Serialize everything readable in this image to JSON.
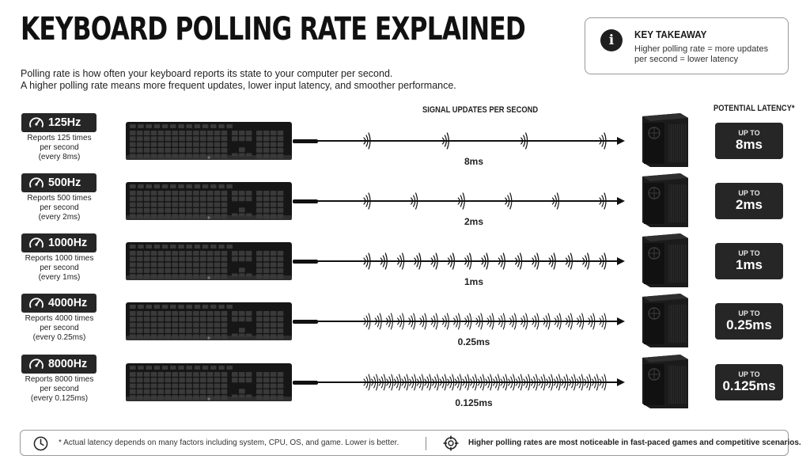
{
  "title": "KEYBOARD POLLING RATE EXPLAINED",
  "intro": {
    "line1": "Polling rate is how often your keyboard reports its state to your computer per second.",
    "line2": "A higher polling rate means more frequent updates, lower input latency, and smoother performance."
  },
  "takeaway": {
    "icon": "info-icon",
    "icon_glyph": "i",
    "title": "KEY TAKEAWAY",
    "line1": "Higher polling rate = more updates",
    "line2": "per second = lower latency"
  },
  "headers": {
    "signal": "SIGNAL UPDATES PER SECOND",
    "latency": "POTENTIAL LATENCY*"
  },
  "rows": [
    {
      "rate": "125Hz",
      "desc1": "Reports 125 times",
      "desc2": "per second",
      "desc3": "(every 8ms)",
      "interval": "8ms",
      "up_to": "UP TO",
      "latency": "8ms",
      "updates_per_second": 125
    },
    {
      "rate": "500Hz",
      "desc1": "Reports 500 times",
      "desc2": "per second",
      "desc3": "(every 2ms)",
      "interval": "2ms",
      "up_to": "UP TO",
      "latency": "2ms",
      "updates_per_second": 500
    },
    {
      "rate": "1000Hz",
      "desc1": "Reports 1000 times",
      "desc2": "per second",
      "desc3": "(every 1ms)",
      "interval": "1ms",
      "up_to": "UP TO",
      "latency": "1ms",
      "updates_per_second": 1000
    },
    {
      "rate": "4000Hz",
      "desc1": "Reports 4000 times",
      "desc2": "per second",
      "desc3": "(every 0.25ms)",
      "interval": "0.25ms",
      "up_to": "UP TO",
      "latency": "0.25ms",
      "updates_per_second": 4000
    },
    {
      "rate": "8000Hz",
      "desc1": "Reports 8000 times",
      "desc2": "per second",
      "desc3": "(every 0.125ms)",
      "interval": "0.125ms",
      "up_to": "UP TO",
      "latency": "0.125ms",
      "updates_per_second": 8000
    }
  ],
  "footer": {
    "left_icon": "clock-icon",
    "left": "* Actual latency depends on many factors including system, CPU, OS, and game. Lower is better.",
    "right_icon": "crosshair-icon",
    "right": "Higher polling rates are most noticeable in fast-paced games and competitive scenarios."
  },
  "colors": {
    "dark": "#262626",
    "text": "#1a1a1a",
    "border": "#999999",
    "background": "#ffffff"
  }
}
